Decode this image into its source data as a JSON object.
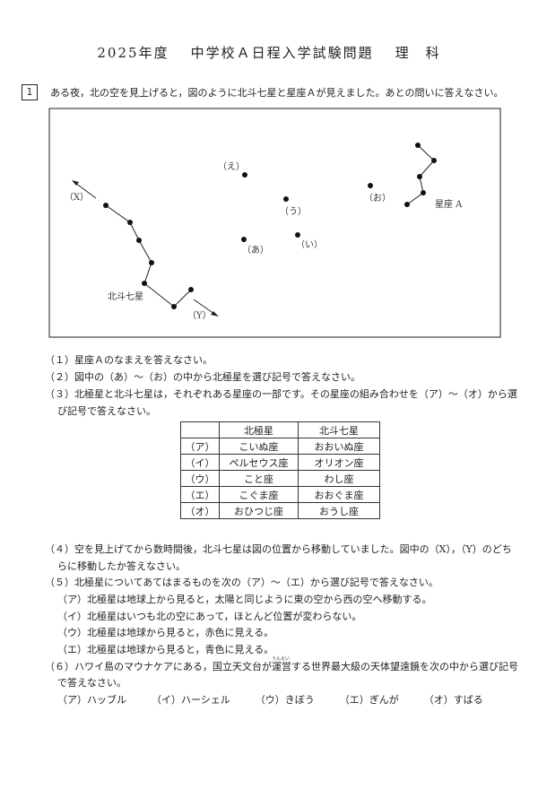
{
  "header": {
    "year": "2025年度",
    "exam": "中学校Ａ日程入学試験問題",
    "subject": "理　科"
  },
  "question": {
    "number": "1",
    "intro": "ある夜，北の空を見上げると，図のように北斗七星と星座Ａが見えました。あとの問いに答えなさい。"
  },
  "figure": {
    "labels": {
      "x": "（X）",
      "y": "（Y）",
      "big_dipper": "北斗七星",
      "constellation_a": "星座 A",
      "a": "（あ）",
      "i": "（い）",
      "u": "（う）",
      "e": "（え）",
      "o": "（お）"
    }
  },
  "q1": "（１）星座Ａのなまえを答えなさい。",
  "q2": "（２）図中の（あ）～（お）の中から北極星を選び記号で答えなさい。",
  "q3": {
    "line1": "（３）北極星と北斗七星は，それぞれある星座の一部です。その星座の組み合わせを（ア）～（オ）から選",
    "line2": "び記号で答えなさい。"
  },
  "table": {
    "headers": [
      "",
      "北極星",
      "北斗七星"
    ],
    "rows": [
      [
        "（ア）",
        "こいぬ座",
        "おおいぬ座"
      ],
      [
        "（イ）",
        "ペルセウス座",
        "オリオン座"
      ],
      [
        "（ウ）",
        "こと座",
        "わし座"
      ],
      [
        "（エ）",
        "こぐま座",
        "おおぐま座"
      ],
      [
        "（オ）",
        "おひつじ座",
        "おうし座"
      ]
    ]
  },
  "q4": {
    "line1": "（４）空を見上げてから数時間後，北斗七星は図の位置から移動していました。図中の（X），（Y）のどち",
    "line2": "らに移動したか答えなさい。"
  },
  "q5": {
    "stem": "（５）北極星についてあてはまるものを次の（ア）～（エ）から選び記号で答えなさい。",
    "options": [
      "（ア）北極星は地球上から見ると，太陽と同じように東の空から西の空へ移動する。",
      "（イ）北極星はいつも北の空にあって，ほとんど位置が変わらない。",
      "（ウ）北極星は地球から見ると，赤色に見える。",
      "（エ）北極星は地球から見ると，青色に見える。"
    ]
  },
  "q6": {
    "line1a": "（６）ハワイ島のマウナケアにある，国立天文台が",
    "ruby_base": "運営",
    "ruby": "うんえい",
    "line1b": "する世界最大級の天体望遠鏡を次の中から選び記号",
    "line2": "で答えなさい。",
    "options": [
      "（ア）ハッブル",
      "（イ）ハーシェル",
      "（ウ）きぼう",
      "（エ）ぎんが",
      "（オ）すばる"
    ]
  }
}
